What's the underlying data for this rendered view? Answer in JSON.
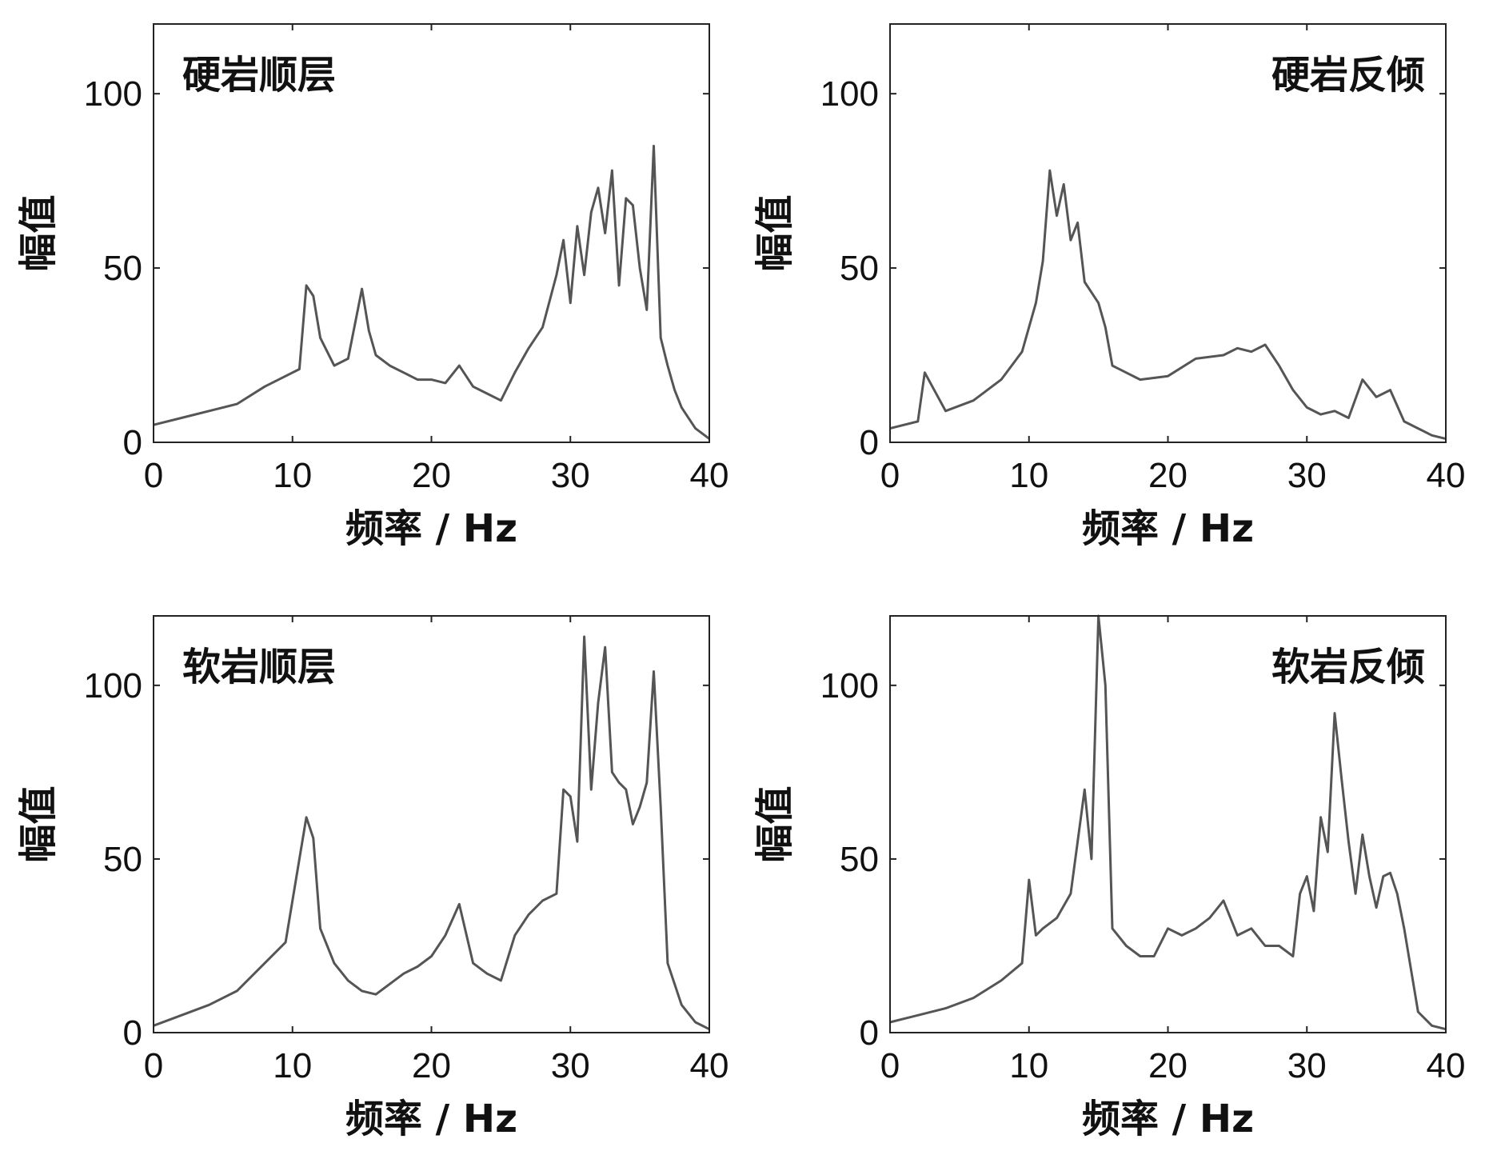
{
  "figure": {
    "panels": [
      {
        "label": "硬岩顺层",
        "label_position": "top-left",
        "xlabel": "频率 / Hz",
        "ylabel": "幅值"
      },
      {
        "label": "硬岩反倾",
        "label_position": "top-right",
        "xlabel": "频率 / Hz",
        "ylabel": "幅值"
      },
      {
        "label": "软岩顺层",
        "label_position": "top-left",
        "xlabel": "频率 / Hz",
        "ylabel": "幅值"
      },
      {
        "label": "软岩反倾",
        "label_position": "top-right",
        "xlabel": "频率 / Hz",
        "ylabel": "幅值"
      }
    ]
  },
  "colors": {
    "line": "#555555",
    "axis": "#222222",
    "text": "#111111",
    "background": "#ffffff"
  },
  "chart_data": [
    {
      "type": "line",
      "title": "硬岩顺层",
      "xlabel": "频率 / Hz",
      "ylabel": "幅值",
      "xlim": [
        0,
        40
      ],
      "ylim": [
        0,
        120
      ],
      "xticks": [
        0,
        10,
        20,
        30,
        40
      ],
      "yticks": [
        0,
        50,
        100
      ],
      "grid": false,
      "series": [
        {
          "x": [
            0,
            2,
            4,
            6,
            8,
            9.5,
            10.5,
            11,
            11.5,
            12,
            13,
            14,
            15,
            15.5,
            16,
            17,
            18,
            19,
            20,
            21,
            22,
            23,
            24,
            25,
            26,
            27,
            28,
            29,
            29.5,
            30,
            30.5,
            31,
            31.5,
            32,
            32.5,
            33,
            33.5,
            34,
            34.5,
            35,
            35.5,
            36,
            36.5,
            37,
            37.5,
            38,
            39,
            40
          ],
          "values": [
            5,
            7,
            9,
            11,
            16,
            19,
            21,
            45,
            42,
            30,
            22,
            24,
            44,
            32,
            25,
            22,
            20,
            18,
            18,
            17,
            22,
            16,
            14,
            12,
            20,
            27,
            33,
            48,
            58,
            40,
            62,
            48,
            66,
            73,
            60,
            78,
            45,
            70,
            68,
            50,
            38,
            85,
            30,
            22,
            15,
            10,
            4,
            1
          ]
        }
      ]
    },
    {
      "type": "line",
      "title": "硬岩反倾",
      "xlabel": "频率 / Hz",
      "ylabel": "幅值",
      "xlim": [
        0,
        40
      ],
      "ylim": [
        0,
        120
      ],
      "xticks": [
        0,
        10,
        20,
        30,
        40
      ],
      "yticks": [
        0,
        50,
        100
      ],
      "grid": false,
      "series": [
        {
          "x": [
            0,
            2,
            2.5,
            4,
            6,
            8,
            9.5,
            10.5,
            11,
            11.5,
            12,
            12.5,
            13,
            13.5,
            14,
            15,
            15.5,
            16,
            18,
            20,
            22,
            24,
            25,
            26,
            27,
            28,
            29,
            30,
            31,
            32,
            33,
            34,
            35,
            36,
            37,
            38,
            39,
            40
          ],
          "values": [
            4,
            6,
            20,
            9,
            12,
            18,
            26,
            40,
            52,
            78,
            65,
            74,
            58,
            63,
            46,
            40,
            33,
            22,
            18,
            19,
            24,
            25,
            27,
            26,
            28,
            22,
            15,
            10,
            8,
            9,
            7,
            18,
            13,
            15,
            6,
            4,
            2,
            1
          ]
        }
      ]
    },
    {
      "type": "line",
      "title": "软岩顺层",
      "xlabel": "频率 / Hz",
      "ylabel": "幅值",
      "xlim": [
        0,
        40
      ],
      "ylim": [
        0,
        120
      ],
      "xticks": [
        0,
        10,
        20,
        30,
        40
      ],
      "yticks": [
        0,
        50,
        100
      ],
      "grid": false,
      "series": [
        {
          "x": [
            0,
            2,
            4,
            6,
            8,
            9.5,
            10.5,
            11,
            11.5,
            12,
            13,
            14,
            15,
            16,
            17,
            18,
            19,
            20,
            21,
            22,
            23,
            24,
            25,
            26,
            27,
            28,
            29,
            29.5,
            30,
            30.5,
            31,
            31.5,
            32,
            32.5,
            33,
            33.5,
            34,
            34.5,
            35,
            35.5,
            36,
            36.5,
            37,
            38,
            39,
            40
          ],
          "values": [
            2,
            5,
            8,
            12,
            20,
            26,
            50,
            62,
            56,
            30,
            20,
            15,
            12,
            11,
            14,
            17,
            19,
            22,
            28,
            37,
            20,
            17,
            15,
            28,
            34,
            38,
            40,
            70,
            68,
            55,
            114,
            70,
            95,
            111,
            75,
            72,
            70,
            60,
            65,
            72,
            104,
            65,
            20,
            8,
            3,
            1
          ]
        }
      ]
    },
    {
      "type": "line",
      "title": "软岩反倾",
      "xlabel": "频率 / Hz",
      "ylabel": "幅值",
      "xlim": [
        0,
        40
      ],
      "ylim": [
        0,
        120
      ],
      "xticks": [
        0,
        10,
        20,
        30,
        40
      ],
      "yticks": [
        0,
        50,
        100
      ],
      "grid": false,
      "series": [
        {
          "x": [
            0,
            2,
            4,
            6,
            8,
            9.5,
            10,
            10.5,
            11,
            12,
            13,
            14,
            14.5,
            15,
            15.5,
            16,
            17,
            18,
            19,
            20,
            21,
            22,
            23,
            24,
            25,
            26,
            27,
            28,
            29,
            29.5,
            30,
            30.5,
            31,
            31.5,
            32,
            32.5,
            33,
            33.5,
            34,
            34.5,
            35,
            35.5,
            36,
            36.5,
            37,
            38,
            39,
            40
          ],
          "values": [
            3,
            5,
            7,
            10,
            15,
            20,
            44,
            28,
            30,
            33,
            40,
            70,
            50,
            120,
            100,
            30,
            25,
            22,
            22,
            30,
            28,
            30,
            33,
            38,
            28,
            30,
            25,
            25,
            22,
            40,
            45,
            35,
            62,
            52,
            92,
            73,
            55,
            40,
            57,
            45,
            36,
            45,
            46,
            40,
            30,
            6,
            2,
            1
          ]
        }
      ]
    }
  ]
}
